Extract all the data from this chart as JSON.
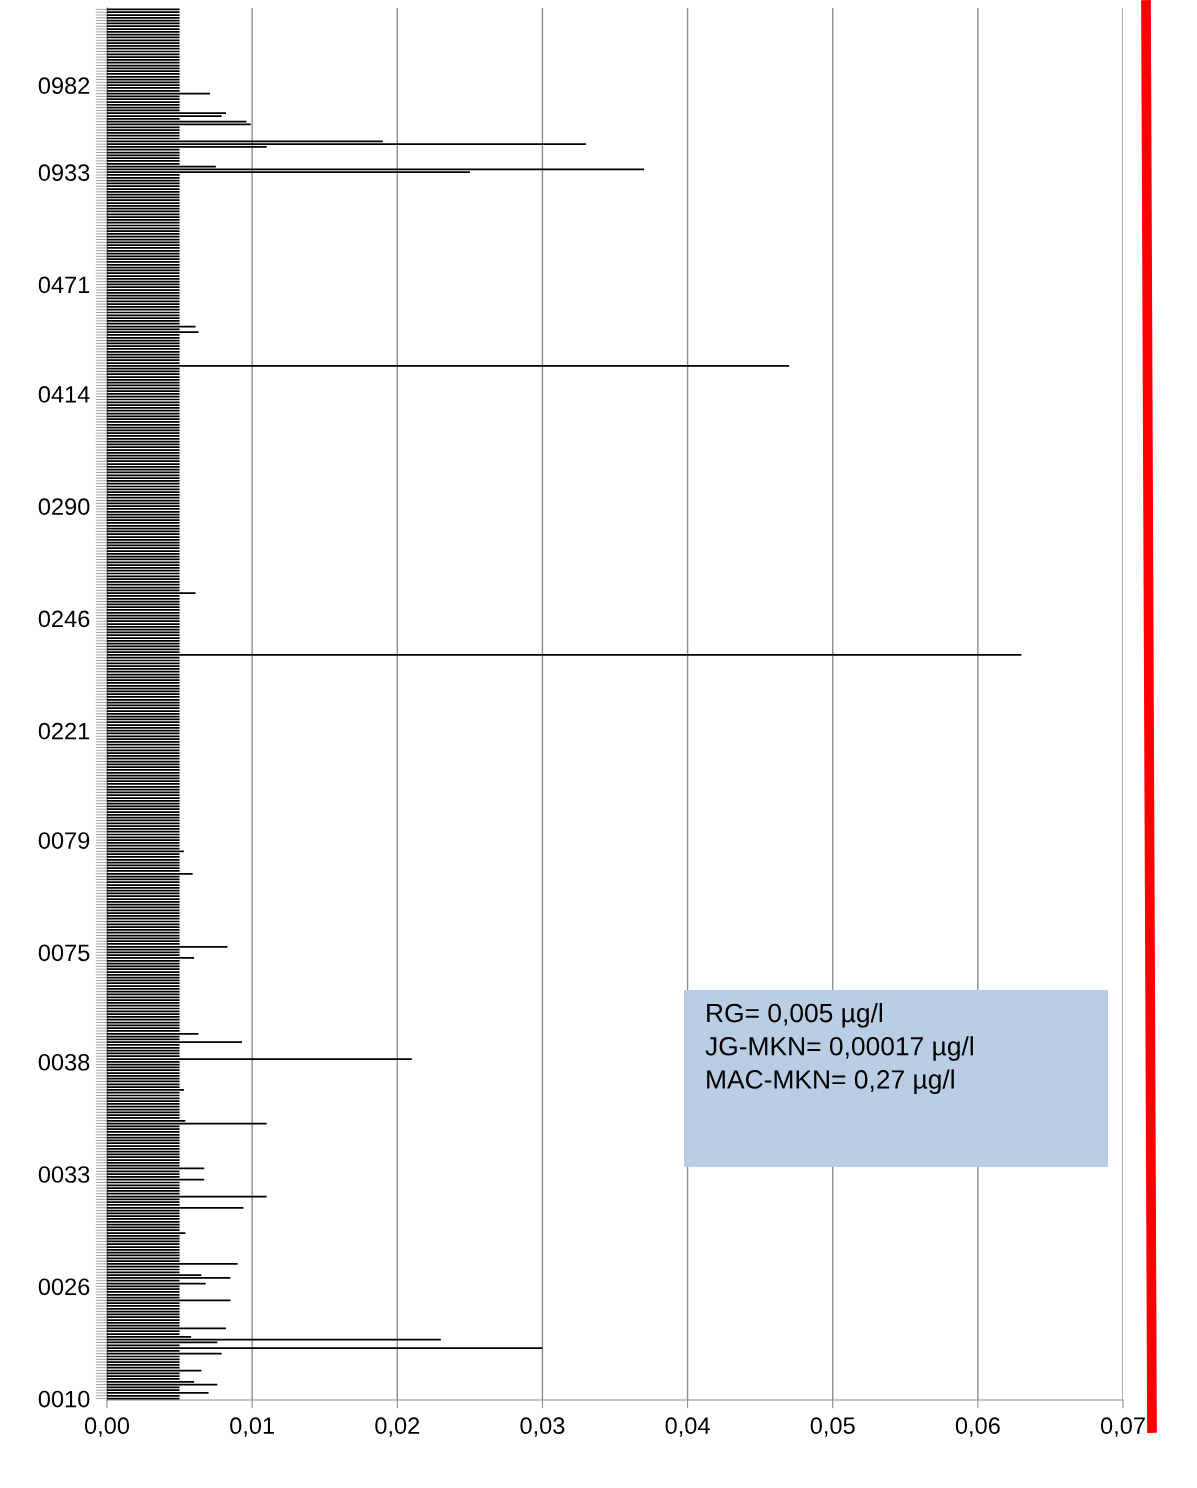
{
  "chart_data": {
    "type": "bar",
    "orientation": "horizontal",
    "color": "#000000",
    "categories": [
      null,
      null,
      null,
      null,
      null,
      null,
      null,
      null,
      null,
      null,
      null,
      null,
      null,
      null,
      null,
      null,
      null,
      null,
      null,
      null,
      null,
      null,
      null,
      null,
      null,
      null,
      null,
      "0982",
      null,
      null,
      null,
      null,
      null,
      null,
      null,
      null,
      null,
      null,
      null,
      null,
      null,
      null,
      null,
      null,
      null,
      null,
      null,
      null,
      null,
      null,
      null,
      null,
      null,
      null,
      null,
      null,
      null,
      null,
      "0933",
      null,
      null,
      null,
      null,
      null,
      null,
      null,
      null,
      null,
      null,
      null,
      null,
      null,
      null,
      null,
      null,
      null,
      null,
      null,
      null,
      null,
      null,
      null,
      null,
      null,
      null,
      null,
      null,
      null,
      null,
      null,
      null,
      null,
      null,
      null,
      null,
      null,
      null,
      null,
      "0471",
      null,
      null,
      null,
      null,
      null,
      null,
      null,
      null,
      null,
      null,
      null,
      null,
      null,
      null,
      null,
      null,
      null,
      null,
      null,
      null,
      null,
      null,
      null,
      null,
      null,
      null,
      null,
      null,
      null,
      null,
      null,
      null,
      null,
      null,
      null,
      null,
      null,
      null,
      "0414",
      null,
      null,
      null,
      null,
      null,
      null,
      null,
      null,
      null,
      null,
      null,
      null,
      null,
      null,
      null,
      null,
      null,
      null,
      null,
      null,
      null,
      null,
      null,
      null,
      null,
      null,
      null,
      null,
      null,
      null,
      null,
      null,
      null,
      null,
      null,
      null,
      null,
      null,
      null,
      "0290",
      null,
      null,
      null,
      null,
      null,
      null,
      null,
      null,
      null,
      null,
      null,
      null,
      null,
      null,
      null,
      null,
      null,
      null,
      null,
      null,
      null,
      null,
      null,
      null,
      null,
      null,
      null,
      null,
      null,
      null,
      null,
      null,
      null,
      null,
      null,
      null,
      null,
      null,
      null,
      "0246",
      null,
      null,
      null,
      null,
      null,
      null,
      null,
      null,
      null,
      null,
      null,
      null,
      null,
      null,
      null,
      null,
      null,
      null,
      null,
      null,
      null,
      null,
      null,
      null,
      null,
      null,
      null,
      null,
      null,
      null,
      null,
      null,
      null,
      null,
      null,
      null,
      null,
      null,
      null,
      "0221",
      null,
      null,
      null,
      null,
      null,
      null,
      null,
      null,
      null,
      null,
      null,
      null,
      null,
      null,
      null,
      null,
      null,
      null,
      null,
      null,
      null,
      null,
      null,
      null,
      null,
      null,
      null,
      null,
      null,
      null,
      null,
      null,
      null,
      null,
      null,
      null,
      null,
      null,
      "0079",
      null,
      null,
      null,
      null,
      null,
      null,
      null,
      null,
      null,
      null,
      null,
      null,
      null,
      null,
      null,
      null,
      null,
      null,
      null,
      null,
      null,
      null,
      null,
      null,
      null,
      null,
      null,
      null,
      null,
      null,
      null,
      null,
      null,
      null,
      null,
      null,
      null,
      null,
      null,
      "0075",
      null,
      null,
      null,
      null,
      null,
      null,
      null,
      null,
      null,
      null,
      null,
      null,
      null,
      null,
      null,
      null,
      null,
      null,
      null,
      null,
      null,
      null,
      null,
      null,
      null,
      null,
      null,
      null,
      null,
      null,
      null,
      null,
      null,
      null,
      null,
      null,
      null,
      null,
      "0038",
      null,
      null,
      null,
      null,
      null,
      null,
      null,
      null,
      null,
      null,
      null,
      null,
      null,
      null,
      null,
      null,
      null,
      null,
      null,
      null,
      null,
      null,
      null,
      null,
      null,
      null,
      null,
      null,
      null,
      null,
      null,
      null,
      null,
      null,
      null,
      null,
      null,
      null,
      null,
      "0033",
      null,
      null,
      null,
      null,
      null,
      null,
      null,
      null,
      null,
      null,
      null,
      null,
      null,
      null,
      null,
      null,
      null,
      null,
      null,
      null,
      null,
      null,
      null,
      null,
      null,
      null,
      null,
      null,
      null,
      null,
      null,
      null,
      null,
      null,
      null,
      null,
      null,
      null,
      null,
      "0026",
      null,
      null,
      null,
      null,
      null,
      null,
      null,
      null,
      null,
      null,
      null,
      null,
      null,
      null,
      null,
      null,
      null,
      null,
      null,
      null,
      null,
      null,
      null,
      null,
      null,
      null,
      null,
      null,
      null,
      null,
      null,
      null,
      null,
      null,
      null,
      null,
      null,
      null,
      null,
      "0010"
    ],
    "values": [
      0.005,
      0.005,
      0.005,
      0.005,
      0.005,
      0.005,
      0.005,
      0.005,
      0.005,
      0.005,
      0.005,
      0.005,
      0.005,
      0.005,
      0.005,
      0.005,
      0.005,
      0.005,
      0.005,
      0.005,
      0.005,
      0.005,
      0.005,
      0.005,
      0.005,
      0.005,
      0.005,
      0.005,
      0.005,
      0.005,
      0.0071,
      0.005,
      0.005,
      0.005,
      0.005,
      0.005,
      0.005,
      0.0082,
      0.0079,
      0.005,
      0.0096,
      0.0099,
      0.005,
      0.005,
      0.005,
      0.005,
      0.005,
      0.019,
      0.033,
      0.011,
      0.005,
      0.005,
      0.005,
      0.005,
      0.005,
      0.005,
      0.0075,
      0.037,
      0.025,
      0.005,
      0.005,
      0.005,
      0.005,
      0.005,
      0.005,
      0.005,
      0.005,
      0.005,
      0.005,
      0.005,
      0.005,
      0.005,
      0.005,
      0.005,
      0.005,
      0.005,
      0.005,
      0.005,
      0.005,
      0.005,
      0.005,
      0.005,
      0.005,
      0.005,
      0.005,
      0.005,
      0.005,
      0.005,
      0.005,
      0.005,
      0.005,
      0.005,
      0.005,
      0.005,
      0.005,
      0.005,
      0.005,
      0.005,
      0.005,
      0.005,
      0.005,
      0.005,
      0.005,
      0.005,
      0.005,
      0.005,
      0.005,
      0.005,
      0.005,
      0.005,
      0.005,
      0.005,
      0.005,
      0.0061,
      0.005,
      0.0063,
      0.005,
      0.005,
      0.005,
      0.005,
      0.005,
      0.005,
      0.005,
      0.005,
      0.005,
      0.005,
      0.005,
      0.047,
      0.005,
      0.005,
      0.005,
      0.005,
      0.005,
      0.005,
      0.005,
      0.005,
      0.005,
      0.005,
      0.005,
      0.005,
      0.005,
      0.005,
      0.005,
      0.005,
      0.005,
      0.005,
      0.005,
      0.005,
      0.005,
      0.005,
      0.005,
      0.005,
      0.005,
      0.005,
      0.005,
      0.005,
      0.005,
      0.005,
      0.005,
      0.005,
      0.005,
      0.005,
      0.005,
      0.005,
      0.005,
      0.005,
      0.005,
      0.005,
      0.005,
      0.005,
      0.005,
      0.005,
      0.005,
      0.005,
      0.005,
      0.005,
      0.005,
      0.005,
      0.005,
      0.005,
      0.005,
      0.005,
      0.005,
      0.005,
      0.005,
      0.005,
      0.005,
      0.005,
      0.005,
      0.005,
      0.005,
      0.005,
      0.005,
      0.005,
      0.005,
      0.005,
      0.005,
      0.005,
      0.005,
      0.005,
      0.005,
      0.005,
      0.005,
      0.005,
      0.005,
      0.005,
      0.005,
      0.005,
      0.0061,
      0.005,
      0.005,
      0.005,
      0.005,
      0.005,
      0.005,
      0.005,
      0.005,
      0.005,
      0.005,
      0.005,
      0.005,
      0.005,
      0.005,
      0.005,
      0.005,
      0.005,
      0.005,
      0.005,
      0.005,
      0.005,
      0.063,
      0.005,
      0.005,
      0.005,
      0.005,
      0.005,
      0.005,
      0.005,
      0.005,
      0.005,
      0.005,
      0.005,
      0.005,
      0.005,
      0.005,
      0.005,
      0.005,
      0.005,
      0.005,
      0.005,
      0.005,
      0.005,
      0.005,
      0.005,
      0.005,
      0.005,
      0.005,
      0.005,
      0.005,
      0.005,
      0.005,
      0.005,
      0.005,
      0.005,
      0.005,
      0.005,
      0.005,
      0.005,
      0.005,
      0.005,
      0.005,
      0.005,
      0.005,
      0.005,
      0.005,
      0.005,
      0.005,
      0.005,
      0.005,
      0.005,
      0.005,
      0.005,
      0.005,
      0.005,
      0.005,
      0.005,
      0.005,
      0.005,
      0.005,
      0.005,
      0.005,
      0.005,
      0.005,
      0.005,
      0.005,
      0.005,
      0.005,
      0.005,
      0.005,
      0.005,
      0.0053,
      0.005,
      0.005,
      0.005,
      0.005,
      0.005,
      0.005,
      0.005,
      0.0059,
      0.005,
      0.005,
      0.005,
      0.005,
      0.005,
      0.005,
      0.005,
      0.005,
      0.005,
      0.005,
      0.005,
      0.005,
      0.005,
      0.005,
      0.005,
      0.005,
      0.005,
      0.005,
      0.005,
      0.005,
      0.005,
      0.005,
      0.005,
      0.005,
      0.005,
      0.0083,
      0.005,
      0.005,
      0.005,
      0.006,
      0.005,
      0.005,
      0.005,
      0.005,
      0.005,
      0.005,
      0.005,
      0.005,
      0.005,
      0.005,
      0.005,
      0.005,
      0.005,
      0.005,
      0.005,
      0.005,
      0.005,
      0.005,
      0.005,
      0.005,
      0.005,
      0.005,
      0.005,
      0.005,
      0.005,
      0.005,
      0.0063,
      0.005,
      0.005,
      0.0093,
      0.005,
      0.005,
      0.005,
      0.005,
      0.005,
      0.021,
      0.005,
      0.005,
      0.005,
      0.005,
      0.005,
      0.005,
      0.005,
      0.005,
      0.005,
      0.005,
      0.0053,
      0.005,
      0.005,
      0.005,
      0.005,
      0.005,
      0.005,
      0.005,
      0.005,
      0.005,
      0.005,
      0.0054,
      0.011,
      0.005,
      0.005,
      0.005,
      0.005,
      0.005,
      0.005,
      0.005,
      0.005,
      0.005,
      0.005,
      0.005,
      0.005,
      0.005,
      0.005,
      0.005,
      0.0067,
      0.005,
      0.005,
      0.005,
      0.0067,
      0.005,
      0.005,
      0.005,
      0.005,
      0.005,
      0.011,
      0.005,
      0.005,
      0.005,
      0.0094,
      0.005,
      0.005,
      0.005,
      0.005,
      0.005,
      0.005,
      0.005,
      0.005,
      0.0054,
      0.005,
      0.005,
      0.005,
      0.005,
      0.005,
      0.005,
      0.005,
      0.005,
      0.005,
      0.005,
      0.009,
      0.005,
      0.005,
      0.005,
      0.0065,
      0.0085,
      0.005,
      0.0068,
      0.005,
      0.005,
      0.005,
      0.005,
      0.005,
      0.0085,
      0.005,
      0.005,
      0.005,
      0.005,
      0.005,
      0.005,
      0.005,
      0.005,
      0.005,
      0.0082,
      0.005,
      0.005,
      0.0058,
      0.023,
      0.0076,
      0.005,
      0.03,
      0.005,
      0.0079,
      0.005,
      0.005,
      0.005,
      0.005,
      0.005,
      0.0065,
      0.005,
      0.005,
      0.005,
      0.006,
      0.0076,
      0.005,
      0.005,
      0.007,
      0.005,
      0.005
    ],
    "xlim": [
      0,
      0.07
    ],
    "xticks": [
      {
        "value": 0,
        "label": "0,00"
      },
      {
        "value": 0.01,
        "label": "0,01"
      },
      {
        "value": 0.02,
        "label": "0,02"
      },
      {
        "value": 0.03,
        "label": "0,03"
      },
      {
        "value": 0.04,
        "label": "0,04"
      },
      {
        "value": 0.05,
        "label": "0,05"
      },
      {
        "value": 0.06,
        "label": "0,06"
      },
      {
        "value": 0.07,
        "label": "0,07"
      }
    ],
    "grid": "x",
    "annotations": [
      "RG= 0,005 µg/l\nJG-MKN= 0,00017 µg/l\nMAC-MKN= 0,27 µg/l"
    ]
  }
}
